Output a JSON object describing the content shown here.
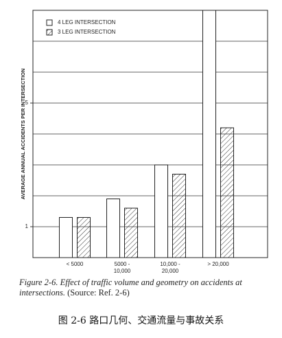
{
  "chart_data": {
    "type": "bar",
    "y_label": "AVERAGE ANNUAL ACCIDENTS PER INTERSECTION",
    "categories": [
      "< 5000",
      "5000 -\n10,000",
      "10,000 -\n20,000",
      "> 20,000"
    ],
    "series": [
      {
        "name": "4 LEG INTERSECTION",
        "color": "#ffffff",
        "hatch": false,
        "values": [
          1.3,
          1.9,
          3.0,
          8
        ]
      },
      {
        "name": "3 LEG INTERSECTION",
        "color": "#ffffff",
        "hatch": true,
        "values": [
          1.3,
          1.6,
          2.7,
          4.2
        ]
      }
    ],
    "ylim": [
      0,
      8
    ],
    "yticks": [
      1,
      5
    ],
    "ygrid": [
      1,
      2,
      3,
      4,
      5,
      6,
      7
    ],
    "grid": true,
    "legend": "top-left",
    "caption": "Figure 2-6. Effect of traffic volume and geometry on accidents at intersections.",
    "source": "(Source: Ref. 2-6)",
    "caption_cn": "图 2-6 路口几何、交通流量与事故关系"
  }
}
